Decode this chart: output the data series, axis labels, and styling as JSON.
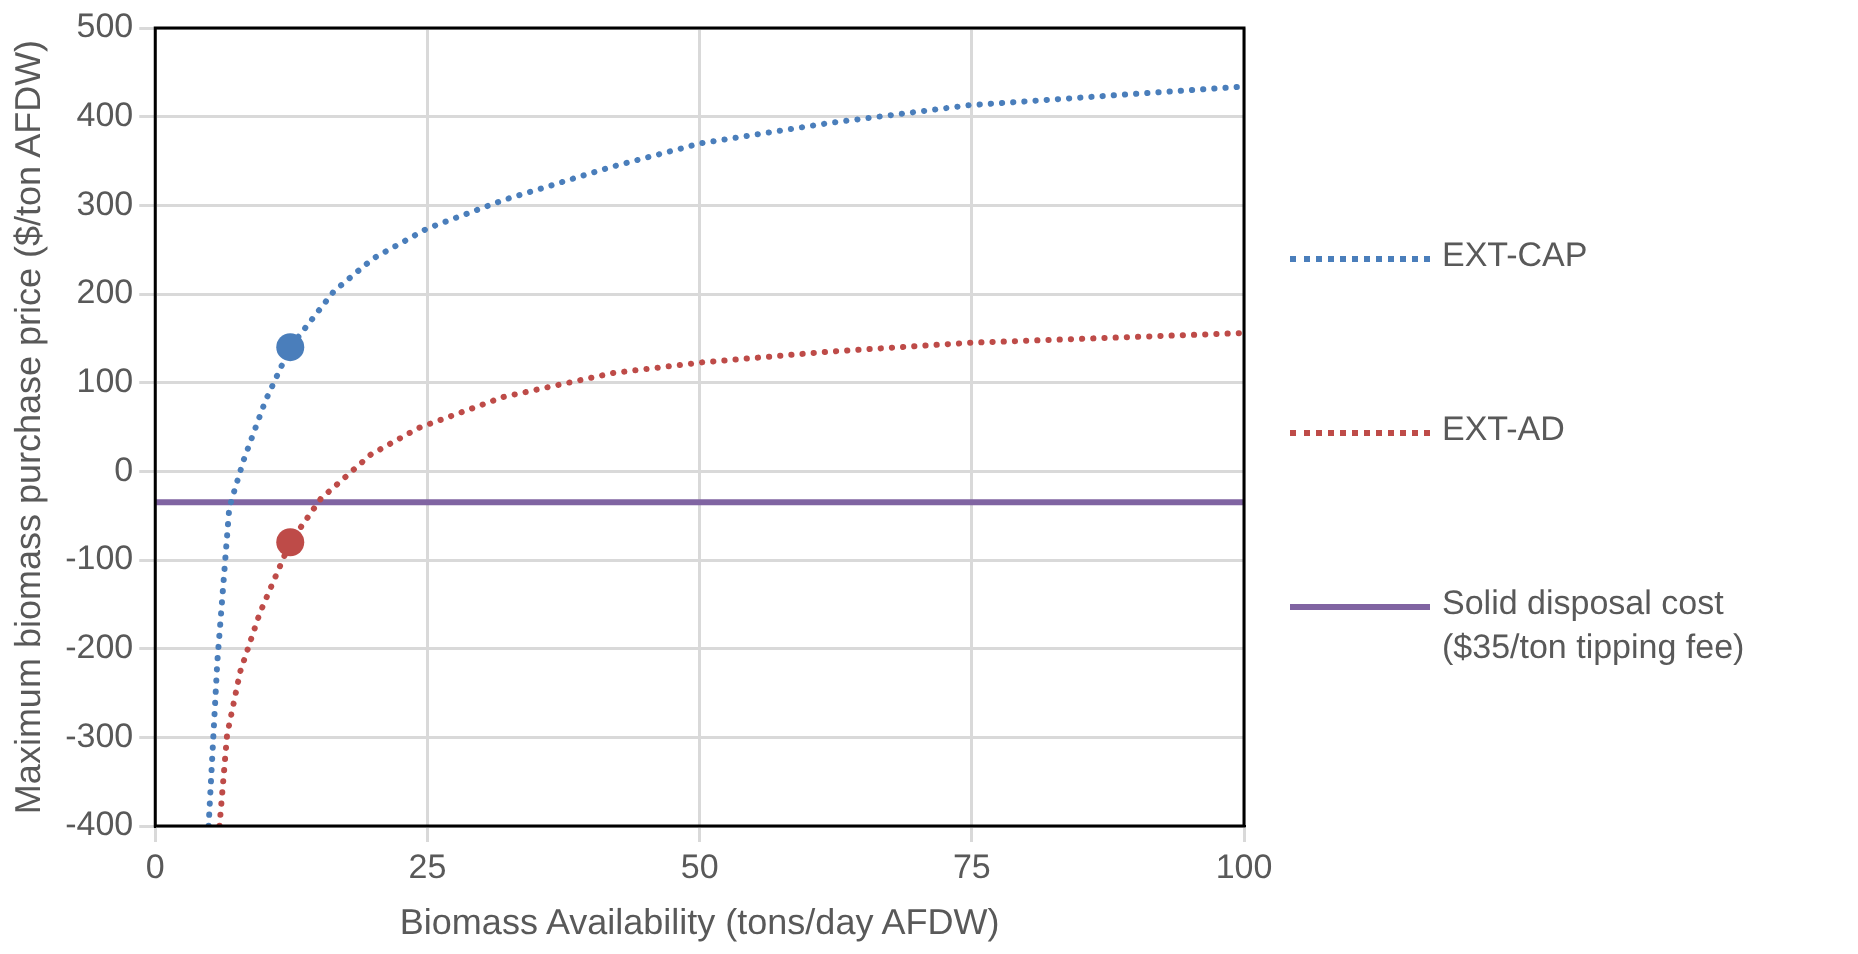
{
  "chart_data": {
    "type": "line",
    "xlabel": "Biomass Availability (tons/day AFDW)",
    "ylabel": "Maximum biomass purchase price ($/ton AFDW)",
    "xlim": [
      0,
      100
    ],
    "xticks": [
      0,
      25,
      50,
      75,
      100
    ],
    "ylim": [
      -400,
      500
    ],
    "yticks": [
      -400,
      -300,
      -200,
      -100,
      0,
      100,
      200,
      300,
      400,
      500
    ],
    "grid": true,
    "legend": "right",
    "series": [
      {
        "name": "EXT-CAP",
        "type": "line",
        "color": "#4a7ebb",
        "line_style": "dotted",
        "marker": "none",
        "x": [
          4.9,
          5.7,
          6.8,
          8.1,
          10.1,
          12.4,
          16.4,
          20,
          25,
          32,
          41.8,
          50.1,
          62,
          74.8,
          100
        ],
        "values": [
          -400,
          -215,
          -41,
          12,
          79,
          140,
          203,
          240,
          274,
          306,
          343,
          370,
          393,
          413,
          434
        ]
      },
      {
        "name": "EXT-AD",
        "type": "line",
        "color": "#be4b48",
        "line_style": "dotted",
        "marker": "none",
        "x": [
          5.9,
          6.6,
          7.8,
          9.6,
          12.4,
          15.2,
          19.8,
          24.2,
          32,
          42.1,
          50.3,
          61.9,
          74.8,
          100
        ],
        "values": [
          -400,
          -297,
          -226,
          -160,
          -80,
          -31,
          19,
          49,
          84,
          111,
          123,
          135,
          145,
          156
        ]
      },
      {
        "name": "Solid disposal cost ($35/ton tipping fee)",
        "type": "line",
        "color": "#8064a2",
        "line_style": "solid",
        "marker": "none",
        "x": [
          0,
          100
        ],
        "values": [
          -35,
          -35
        ]
      },
      {
        "type": "scatter",
        "color": "#4a7ebb",
        "marker": "circle",
        "x": [
          12.4
        ],
        "values": [
          140
        ]
      },
      {
        "type": "scatter",
        "color": "#be4b48",
        "marker": "circle",
        "x": [
          12.4
        ],
        "values": [
          -80
        ]
      }
    ]
  }
}
